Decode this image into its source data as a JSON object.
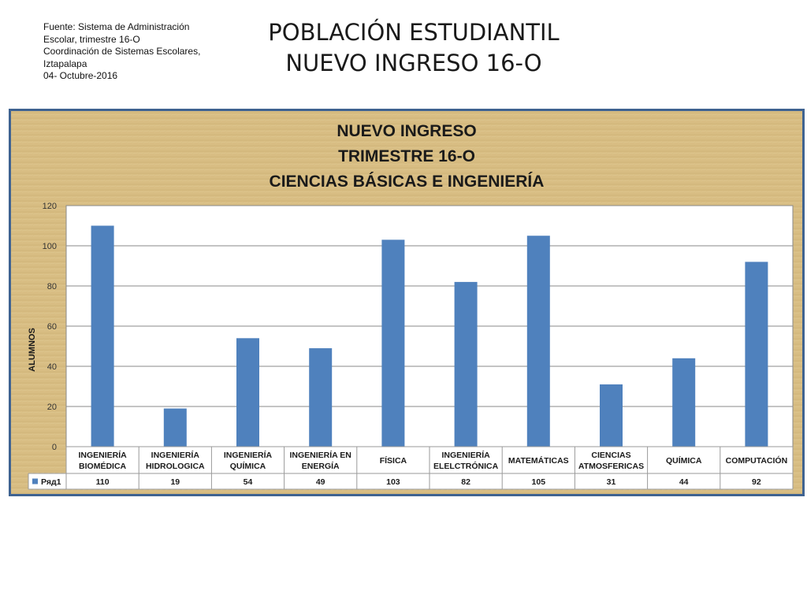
{
  "source": {
    "lines": [
      "Fuente: Sistema de Administración",
      "Escolar, trimestre 16-O",
      "Coordinación de Sistemas Escolares,",
      "Iztapalapa",
      "04- Octubre-2016"
    ]
  },
  "slide_title": {
    "line1": "POBLACIÓN ESTUDIANTIL",
    "line2": "NUEVO INGRESO 16-O"
  },
  "chart_data": {
    "type": "bar",
    "title_lines": [
      "NUEVO INGRESO",
      "TRIMESTRE 16-O",
      "CIENCIAS BÁSICAS E INGENIERÍA"
    ],
    "ylabel": "ALUMNOS",
    "xlabel": "",
    "ylim": [
      0,
      120
    ],
    "yticks": [
      0,
      20,
      40,
      60,
      80,
      100,
      120
    ],
    "grid": true,
    "categories": [
      [
        "INGENIERÍA",
        "BIOMÉDICA"
      ],
      [
        "INGENIERÍA",
        "HIDROLOGICA"
      ],
      [
        "INGENIERÍA",
        "QUÍMICA"
      ],
      [
        "INGENIERÍA EN",
        "ENERGÍA"
      ],
      [
        "FÍSICA"
      ],
      [
        "INGENIERÍA",
        "ELELCTRÓNICA"
      ],
      [
        "MATEMÁTICAS"
      ],
      [
        "CIENCIAS",
        "ATMOSFERICAS"
      ],
      [
        "QUÍMICA"
      ],
      [
        "COMPUTACIÓN"
      ]
    ],
    "series": [
      {
        "name": "Ряд1",
        "values": [
          110,
          19,
          54,
          49,
          103,
          82,
          105,
          31,
          44,
          92
        ],
        "color": "#4f81bd"
      }
    ],
    "data_table": true
  }
}
